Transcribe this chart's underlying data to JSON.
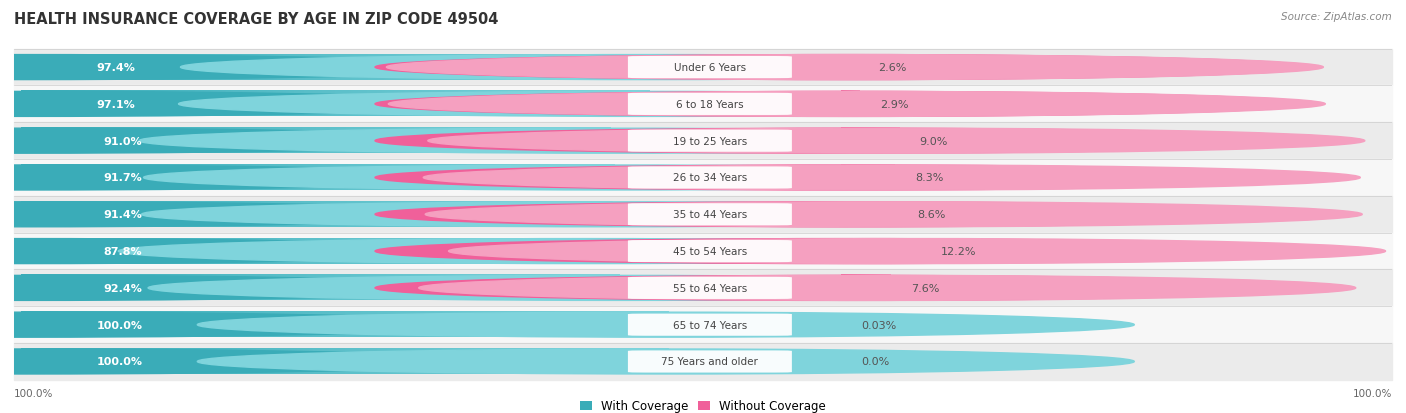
{
  "title": "HEALTH INSURANCE COVERAGE BY AGE IN ZIP CODE 49504",
  "source": "Source: ZipAtlas.com",
  "categories": [
    "Under 6 Years",
    "6 to 18 Years",
    "19 to 25 Years",
    "26 to 34 Years",
    "35 to 44 Years",
    "45 to 54 Years",
    "55 to 64 Years",
    "65 to 74 Years",
    "75 Years and older"
  ],
  "with_coverage": [
    97.4,
    97.1,
    91.0,
    91.7,
    91.4,
    87.8,
    92.4,
    100.0,
    100.0
  ],
  "without_coverage": [
    2.6,
    2.9,
    9.0,
    8.3,
    8.6,
    12.2,
    7.6,
    0.03,
    0.0
  ],
  "with_labels": [
    "97.4%",
    "97.1%",
    "91.0%",
    "91.7%",
    "91.4%",
    "87.8%",
    "92.4%",
    "100.0%",
    "100.0%"
  ],
  "without_labels": [
    "2.6%",
    "2.9%",
    "9.0%",
    "8.3%",
    "8.6%",
    "12.2%",
    "7.6%",
    "0.03%",
    "0.0%"
  ],
  "color_with_dark": "#3aacb8",
  "color_with_light": "#7fd4dc",
  "color_without_dark": "#f0609a",
  "color_without_light": "#f5a0c0",
  "legend_with": "With Coverage",
  "legend_without": "Without Coverage",
  "x_left_label": "100.0%",
  "x_right_label": "100.0%",
  "row_colors": [
    "#ebebeb",
    "#f7f7f7",
    "#ebebeb",
    "#f7f7f7",
    "#ebebeb",
    "#f7f7f7",
    "#ebebeb",
    "#f7f7f7",
    "#ebebeb"
  ]
}
